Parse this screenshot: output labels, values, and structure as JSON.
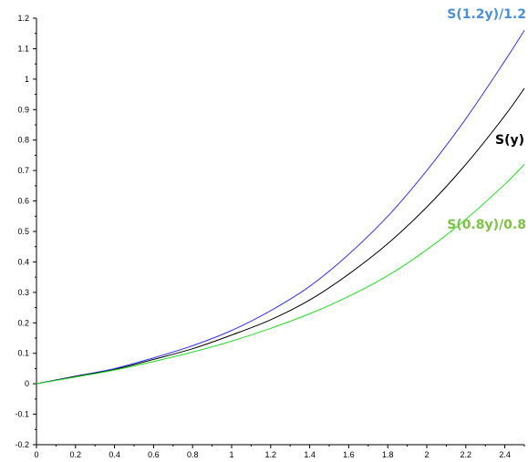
{
  "chart_data": {
    "type": "line",
    "title": "",
    "xlabel": "",
    "ylabel": "",
    "xlim": [
      0,
      2.5
    ],
    "ylim": [
      -0.2,
      1.2
    ],
    "grid": false,
    "legend": "none",
    "x_ticks": [
      "0",
      "0.2",
      "0.4",
      "0.6",
      "0.8",
      "1",
      "1.2",
      "1.4",
      "1.6",
      "1.8",
      "2",
      "2.2",
      "2.4"
    ],
    "y_ticks": [
      "-0.2",
      "-0.1",
      "0",
      "0.1",
      "0.2",
      "0.3",
      "0.4",
      "0.5",
      "0.6",
      "0.7",
      "0.8",
      "0.9",
      "1",
      "1.1",
      "1.2"
    ],
    "x": [
      0,
      0.2,
      0.4,
      0.6,
      0.8,
      1.0,
      1.2,
      1.4,
      1.6,
      1.8,
      2.0,
      2.2,
      2.4,
      2.5
    ],
    "series": [
      {
        "name": "S(1.2y)/1.2",
        "color": "#3333ff",
        "label_color": "#4a90d9",
        "values": [
          0,
          0.025,
          0.05,
          0.085,
          0.125,
          0.175,
          0.24,
          0.32,
          0.425,
          0.55,
          0.7,
          0.87,
          1.06,
          1.16
        ]
      },
      {
        "name": "S(y)",
        "color": "#000000",
        "label_color": "#000000",
        "values": [
          0,
          0.024,
          0.047,
          0.08,
          0.115,
          0.16,
          0.21,
          0.275,
          0.36,
          0.46,
          0.58,
          0.72,
          0.88,
          0.97
        ]
      },
      {
        "name": "S(0.8y)/0.8",
        "color": "#22dd22",
        "label_color": "#7dc242",
        "values": [
          0,
          0.022,
          0.045,
          0.073,
          0.104,
          0.14,
          0.182,
          0.23,
          0.287,
          0.355,
          0.44,
          0.54,
          0.655,
          0.72
        ]
      }
    ]
  }
}
